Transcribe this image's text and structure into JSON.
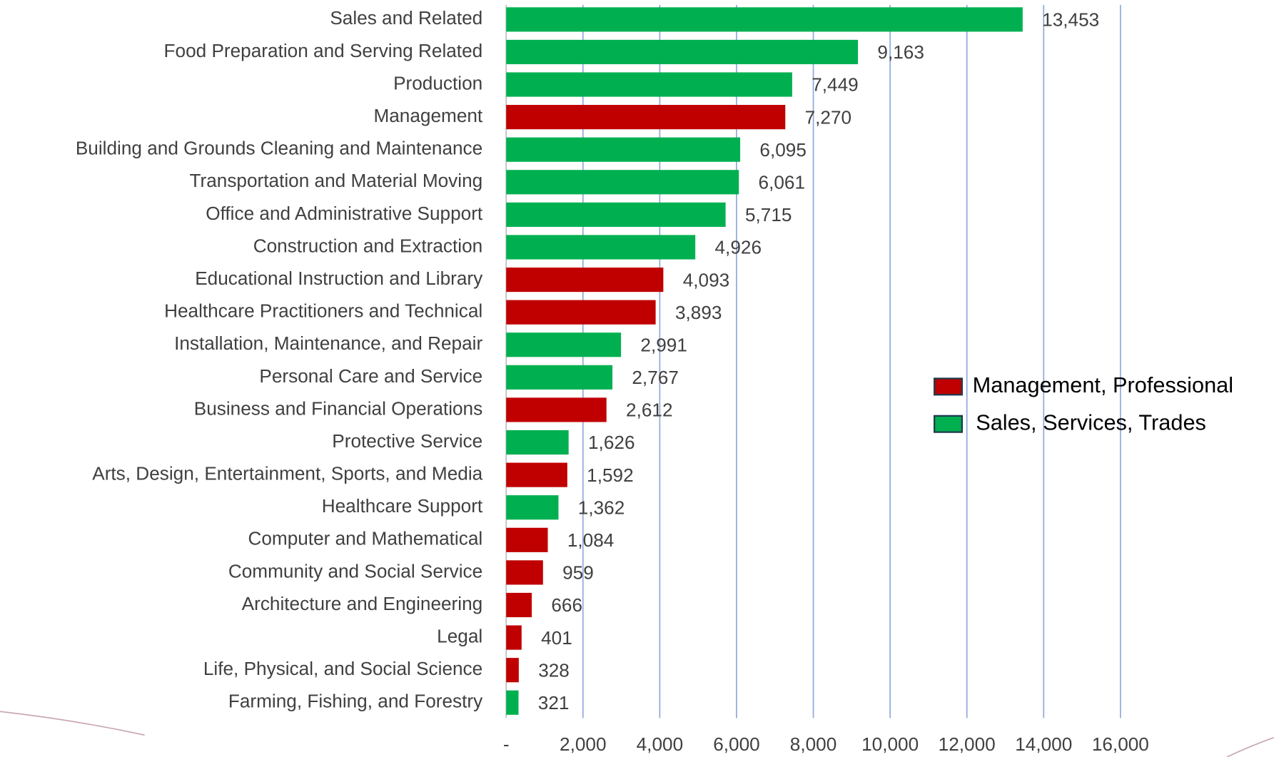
{
  "chart_data": {
    "type": "bar",
    "orientation": "horizontal",
    "categories": [
      "Sales and Related",
      "Food Preparation and Serving Related",
      "Production",
      "Management",
      "Building and Grounds Cleaning and Maintenance",
      "Transportation and Material Moving",
      "Office and Administrative Support",
      "Construction and Extraction",
      "Educational Instruction and Library",
      "Healthcare Practitioners and Technical",
      "Installation, Maintenance, and Repair",
      "Personal Care and Service",
      "Business and Financial Operations",
      "Protective Service",
      "Arts, Design, Entertainment, Sports, and Media",
      "Healthcare Support",
      "Computer and Mathematical",
      "Community and Social Service",
      "Architecture and Engineering",
      "Legal",
      "Life, Physical, and Social Science",
      "Farming, Fishing, and Forestry"
    ],
    "series": [
      {
        "name": "Management, Professional",
        "color": "#c00000",
        "values": [
          null,
          null,
          null,
          7270,
          null,
          null,
          null,
          null,
          4093,
          3893,
          null,
          null,
          2612,
          null,
          1592,
          null,
          1084,
          959,
          666,
          401,
          328,
          null
        ],
        "value_labels": [
          null,
          null,
          null,
          "7,270",
          null,
          null,
          null,
          null,
          "4,093",
          "3,893",
          null,
          null,
          "2,612",
          null,
          "1,592",
          null,
          "1,084",
          "959",
          "666",
          "401",
          "328",
          null
        ]
      },
      {
        "name": "Sales, Services, Trades",
        "color": "#00b050",
        "values": [
          13453,
          9163,
          7449,
          null,
          6095,
          6061,
          5715,
          4926,
          null,
          null,
          2991,
          2767,
          null,
          1626,
          null,
          1362,
          null,
          null,
          null,
          null,
          null,
          321
        ],
        "value_labels": [
          "13,453",
          "9,163",
          "7,449",
          null,
          "6,095",
          "6,061",
          "5,715",
          "4,926",
          null,
          null,
          "2,991",
          "2,767",
          null,
          "1,626",
          null,
          "1,362",
          null,
          null,
          null,
          null,
          null,
          "321"
        ]
      }
    ],
    "xlim": [
      0,
      16000
    ],
    "xticks": [
      {
        "value": 0,
        "label": "-"
      },
      {
        "value": 2000,
        "label": "2,000"
      },
      {
        "value": 4000,
        "label": "4,000"
      },
      {
        "value": 6000,
        "label": "6,000"
      },
      {
        "value": 8000,
        "label": "8,000"
      },
      {
        "value": 10000,
        "label": "10,000"
      },
      {
        "value": 12000,
        "label": "12,000"
      },
      {
        "value": 14000,
        "label": "14,000"
      },
      {
        "value": 16000,
        "label": "16,000"
      }
    ],
    "grid": true,
    "grid_color": "#8faadc",
    "legend": "right"
  }
}
